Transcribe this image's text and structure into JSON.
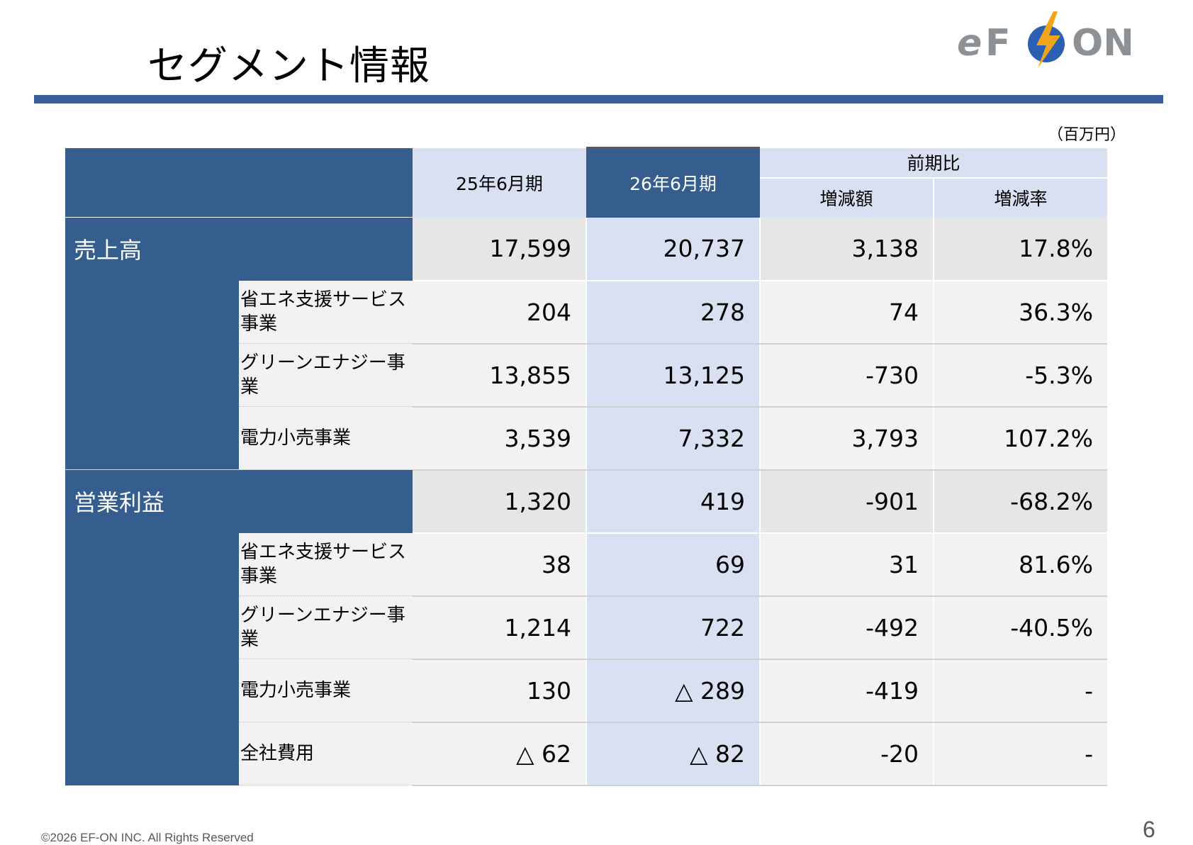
{
  "title": "セグメント情報",
  "logo": {
    "brand_text": "eFØON",
    "accent_color": "#2b5fb4",
    "bolt_color": "#f2a51a"
  },
  "unit": "（百万円）",
  "table": {
    "headers": {
      "prev": "25年6月期",
      "curr": "26年6月期",
      "comparison": "前期比",
      "change_amount": "増減額",
      "change_rate": "増減率"
    },
    "sections": [
      {
        "label": "売上高",
        "values": [
          "17,599",
          "20,737",
          "3,138",
          "17.8%"
        ],
        "rows": [
          {
            "label": "省エネ支援サービス事業",
            "values": [
              "204",
              "278",
              "74",
              "36.3%"
            ]
          },
          {
            "label": "グリーンエナジー事業",
            "values": [
              "13,855",
              "13,125",
              "-730",
              "-5.3%"
            ]
          },
          {
            "label": "電力小売事業",
            "values": [
              "3,539",
              "7,332",
              "3,793",
              "107.2%"
            ]
          }
        ]
      },
      {
        "label": "営業利益",
        "values": [
          "1,320",
          "419",
          "-901",
          "-68.2%"
        ],
        "rows": [
          {
            "label": "省エネ支援サービス事業",
            "values": [
              "38",
              "69",
              "31",
              "81.6%"
            ]
          },
          {
            "label": "グリーンエナジー事業",
            "values": [
              "1,214",
              "722",
              "-492",
              "-40.5%"
            ]
          },
          {
            "label": "電力小売事業",
            "values": [
              "130",
              "△ 289",
              "-419",
              "-"
            ]
          },
          {
            "label": "全社費用",
            "values": [
              "△ 62",
              "△ 82",
              "-20",
              "-"
            ]
          }
        ]
      }
    ]
  },
  "footer": {
    "copyright": "©2026  EF-ON INC.  All Rights Reserved",
    "page_number": "6"
  }
}
